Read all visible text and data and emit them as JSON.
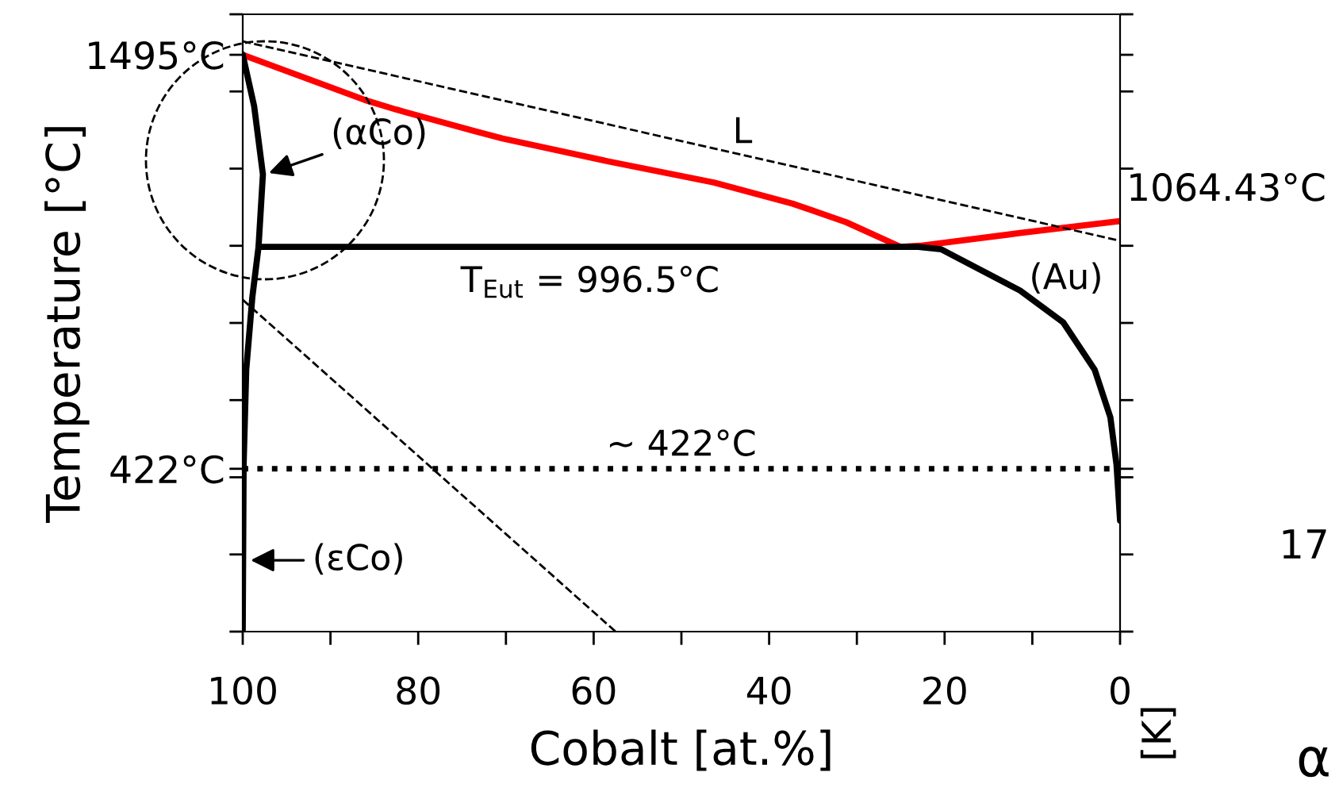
{
  "chart_data": {
    "type": "line",
    "xlabel": "Cobalt [at.%]",
    "ylabel": "Temperature [°C]",
    "series": [
      {
        "color": "#ff0000",
        "x": [
          100,
          86.1,
          82.5,
          73.4,
          70.4,
          58.4,
          46.3,
          37.3,
          31.2,
          25,
          22.8,
          11.4,
          0
        ],
        "values": [
          1495,
          1378,
          1353,
          1296,
          1278,
          1219,
          1164,
          1109,
          1061,
          997,
          1000,
          1033,
          1064
        ]
      },
      {
        "color": "#000000",
        "x": [
          98.2,
          23,
          20.4,
          11.4,
          6.5,
          2.9,
          1.1,
          0.4,
          0
        ],
        "values": [
          997,
          997,
          991,
          884,
          802,
          679,
          555,
          432,
          288
        ]
      },
      {
        "color": "#000000",
        "x": [
          100,
          98.7,
          97.7,
          98.2,
          98.9,
          99.6,
          99.9,
          100
        ],
        "values": [
          1495,
          1362,
          1185,
          997,
          868,
          679,
          432,
          4
        ]
      },
      {
        "color": "#000000",
        "line_style": "dashed",
        "x": [
          100,
          0
        ],
        "values": [
          1530,
          1013
        ]
      },
      {
        "color": "#000000",
        "line_style": "dashed",
        "x": [
          100,
          57.5
        ],
        "values": [
          860,
          0
        ]
      }
    ],
    "xlim": [
      100,
      0
    ],
    "xticks": [
      100,
      {
        "value": 90,
        "label": null
      },
      80,
      {
        "value": 70,
        "label": null
      },
      60,
      {
        "value": 50,
        "label": null
      },
      40,
      {
        "value": 30,
        "label": null
      },
      20,
      {
        "value": 10,
        "label": null
      },
      0
    ],
    "ylim": [
      0,
      1600
    ],
    "yticks": [
      {
        "value": 0,
        "label": null
      },
      {
        "value": 200,
        "label": null
      },
      {
        "value": 400,
        "label": null
      },
      {
        "value": 422,
        "label": "422°C"
      },
      {
        "value": 600,
        "label": null
      },
      {
        "value": 800,
        "label": null
      },
      {
        "value": 1000,
        "label": null
      },
      {
        "value": 1200,
        "label": null
      },
      {
        "value": 1400,
        "label": null
      },
      {
        "value": 1495,
        "label": "1495°C"
      },
      {
        "value": 1600,
        "label": null
      }
    ],
    "ref_lines": [
      {
        "axis": "y",
        "value": 422,
        "label": "~ 422°C",
        "color": "#000000",
        "line_style": "dotted"
      }
    ],
    "annotations": [
      {
        "text": "(αCo)",
        "x": 97.5,
        "y": 1185
      },
      {
        "text": "(εCo)",
        "x": 99.6,
        "y": 185
      },
      "L",
      "(Au)",
      "T$_{Eut}$ = 996.5°C",
      "1064.43°C",
      "17",
      "α",
      "[K]"
    ],
    "grid": false,
    "legend": false,
    "marker": "none",
    "line_style": "solid"
  }
}
